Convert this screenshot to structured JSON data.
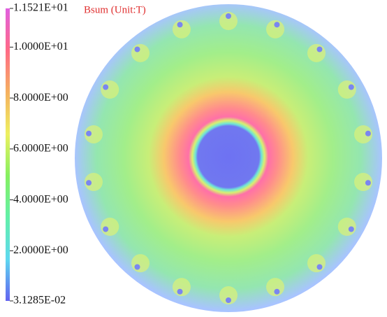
{
  "chart_data": {
    "type": "field",
    "title": "Bsum (Unit:T)",
    "title_color": "#e03030",
    "ylim": [
      0.031285,
      11.521
    ],
    "yticks": [
      {
        "value": 11.521,
        "label": "1.1521E+01"
      },
      {
        "value": 10,
        "label": "1.0000E+01"
      },
      {
        "value": 8,
        "label": "8.0000E+00"
      },
      {
        "value": 6,
        "label": "6.0000E+00"
      },
      {
        "value": 4,
        "label": "4.0000E+00"
      },
      {
        "value": 2,
        "label": "2.0000E+00"
      },
      {
        "value": 0.031285,
        "label": "3.1285E-02"
      }
    ],
    "colormap": [
      "#6262f0",
      "#5ed8f0",
      "#62f0a8",
      "#86f060",
      "#eef060",
      "#f5b060",
      "#ff6a86",
      "#e060e0"
    ]
  }
}
